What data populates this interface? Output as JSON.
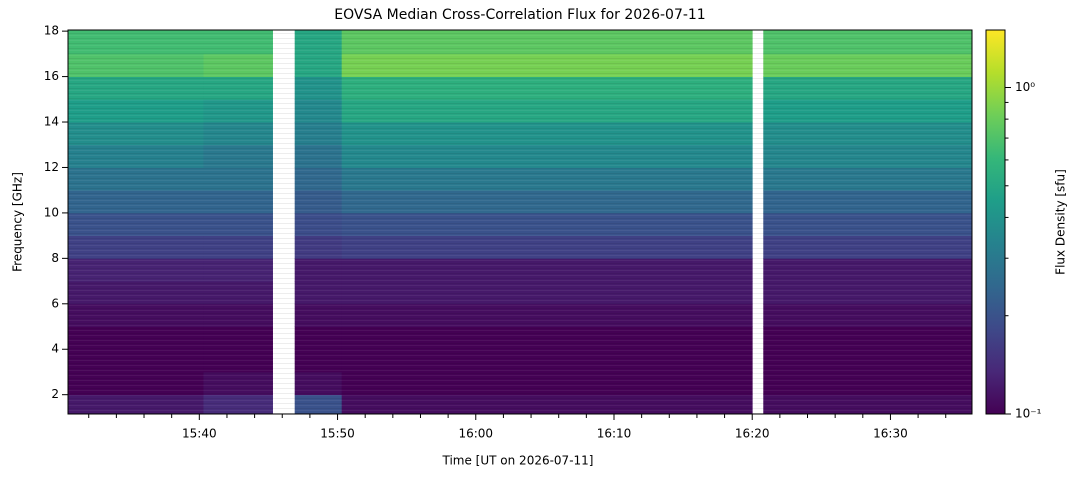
{
  "chart_data": {
    "type": "heatmap",
    "title": "EOVSA Median Cross-Correlation Flux for 2026-07-11",
    "xlabel": "Time [UT on 2026-07-11]",
    "ylabel": "Frequency [GHz]",
    "colorbar_label": "Flux Density [sfu]",
    "colormap": "viridis",
    "color_scale": "log",
    "x_edges": [
      930.5,
      940.3,
      945.3,
      946.9,
      950.3,
      980.0,
      980.8,
      995.9
    ],
    "y_edges": [
      1.15,
      2,
      3,
      4,
      5,
      6,
      7,
      8,
      9,
      10,
      11,
      12,
      13,
      14,
      15,
      16,
      17,
      18.05
    ],
    "z": [
      [
        0.12,
        0.14,
        null,
        0.2,
        0.11,
        null,
        0.11
      ],
      [
        0.1,
        0.11,
        null,
        0.11,
        0.1,
        null,
        0.1
      ],
      [
        0.1,
        0.1,
        null,
        0.1,
        0.1,
        null,
        0.1
      ],
      [
        0.1,
        0.1,
        null,
        0.1,
        0.1,
        null,
        0.1
      ],
      [
        0.11,
        0.11,
        null,
        0.11,
        0.11,
        null,
        0.11
      ],
      [
        0.12,
        0.12,
        null,
        0.12,
        0.12,
        null,
        0.12
      ],
      [
        0.13,
        0.13,
        null,
        0.12,
        0.12,
        null,
        0.12
      ],
      [
        0.17,
        0.17,
        null,
        0.16,
        0.17,
        null,
        0.17
      ],
      [
        0.2,
        0.2,
        null,
        0.19,
        0.2,
        null,
        0.2
      ],
      [
        0.24,
        0.24,
        null,
        0.22,
        0.25,
        null,
        0.24
      ],
      [
        0.28,
        0.28,
        null,
        0.25,
        0.3,
        null,
        0.3
      ],
      [
        0.33,
        0.3,
        null,
        0.28,
        0.36,
        null,
        0.35
      ],
      [
        0.38,
        0.35,
        null,
        0.32,
        0.4,
        null,
        0.38
      ],
      [
        0.45,
        0.42,
        null,
        0.36,
        0.5,
        null,
        0.45
      ],
      [
        0.5,
        0.5,
        null,
        0.4,
        0.55,
        null,
        0.5
      ],
      [
        0.7,
        0.75,
        null,
        0.5,
        0.85,
        null,
        0.8
      ],
      [
        0.65,
        0.65,
        null,
        0.5,
        0.75,
        null,
        0.7
      ]
    ],
    "xlim": [
      930.5,
      995.9
    ],
    "xticks": [
      {
        "value": 940,
        "label": "15:40"
      },
      {
        "value": 950,
        "label": "15:50"
      },
      {
        "value": 960,
        "label": "16:00"
      },
      {
        "value": 970,
        "label": "16:10"
      },
      {
        "value": 980,
        "label": "16:20"
      },
      {
        "value": 990,
        "label": "16:30"
      }
    ],
    "xminorticks": [
      932,
      934,
      936,
      938,
      942,
      944,
      946,
      948,
      952,
      954,
      956,
      958,
      962,
      964,
      966,
      968,
      972,
      974,
      976,
      978,
      982,
      984,
      986,
      988,
      992,
      994
    ],
    "ylim": [
      1.15,
      18.05
    ],
    "yticks": [
      2,
      4,
      6,
      8,
      10,
      12,
      14,
      16,
      18
    ],
    "clim": [
      0.1,
      1.5
    ],
    "cticks": [
      {
        "value": 0.1,
        "label": "10⁻¹"
      },
      {
        "value": 1,
        "label": "10⁰"
      }
    ],
    "cminorticks": [
      0.2,
      0.3,
      0.4,
      0.5,
      0.6,
      0.7,
      0.8,
      0.9
    ]
  }
}
